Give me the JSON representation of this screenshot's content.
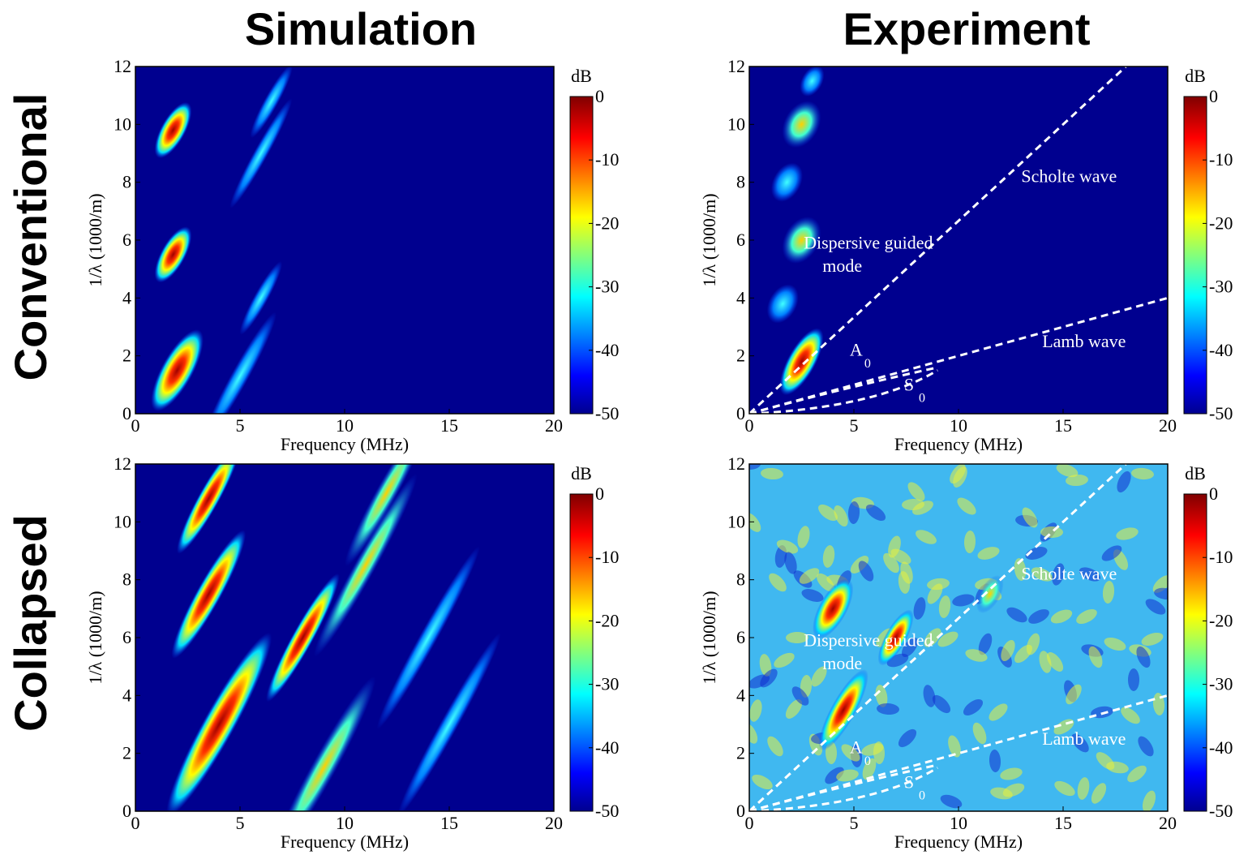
{
  "column_titles": [
    "Simulation",
    "Experiment"
  ],
  "row_titles": [
    "Conventional",
    "Collapsed"
  ],
  "chart_data": [
    {
      "type": "heatmap",
      "xlabel": "Frequency (MHz)",
      "ylabel": "1/λ (1000/m)",
      "xlim": [
        0,
        20
      ],
      "xticks": [
        0,
        5,
        10,
        15,
        20
      ],
      "ylim": [
        0,
        12
      ],
      "yticks": [
        0,
        2,
        4,
        6,
        8,
        10,
        12
      ],
      "colorbar": {
        "label": "dB",
        "lim": [
          -50,
          0
        ],
        "ticks": [
          0,
          -10,
          -20,
          -30,
          -40,
          -50
        ]
      },
      "annotations": []
    },
    {
      "type": "heatmap",
      "xlabel": "Frequency (MHz)",
      "ylabel": "1/λ (1000/m)",
      "xlim": [
        0,
        20
      ],
      "xticks": [
        0,
        5,
        10,
        15,
        20
      ],
      "ylim": [
        0,
        12
      ],
      "yticks": [
        0,
        2,
        4,
        6,
        8,
        10,
        12
      ],
      "colorbar": {
        "label": "dB",
        "lim": [
          -50,
          0
        ],
        "ticks": [
          0,
          -10,
          -20,
          -30,
          -40,
          -50
        ]
      },
      "annotations": [
        "Scholte wave",
        "Dispersive guided",
        "mode",
        "A",
        "0",
        "S",
        "0",
        "Lamb wave"
      ]
    },
    {
      "type": "heatmap",
      "xlabel": "Frequency (MHz)",
      "ylabel": "1/λ (1000/m)",
      "xlim": [
        0,
        20
      ],
      "xticks": [
        0,
        5,
        10,
        15,
        20
      ],
      "ylim": [
        0,
        12
      ],
      "yticks": [
        0,
        2,
        4,
        6,
        8,
        10,
        12
      ],
      "colorbar": {
        "label": "dB",
        "lim": [
          -50,
          0
        ],
        "ticks": [
          0,
          -10,
          -20,
          -30,
          -40,
          -50
        ]
      },
      "annotations": []
    },
    {
      "type": "heatmap",
      "xlabel": "Frequency (MHz)",
      "ylabel": "1/λ (1000/m)",
      "xlim": [
        0,
        20
      ],
      "xticks": [
        0,
        5,
        10,
        15,
        20
      ],
      "ylim": [
        0,
        12
      ],
      "yticks": [
        0,
        2,
        4,
        6,
        8,
        10,
        12
      ],
      "colorbar": {
        "label": "dB",
        "lim": [
          -50,
          0
        ],
        "ticks": [
          0,
          -10,
          -20,
          -30,
          -40,
          -50
        ]
      },
      "annotations": [
        "Scholte wave",
        "Dispersive guided",
        "mode",
        "A",
        "0",
        "S",
        "0",
        "Lamb wave"
      ]
    }
  ]
}
